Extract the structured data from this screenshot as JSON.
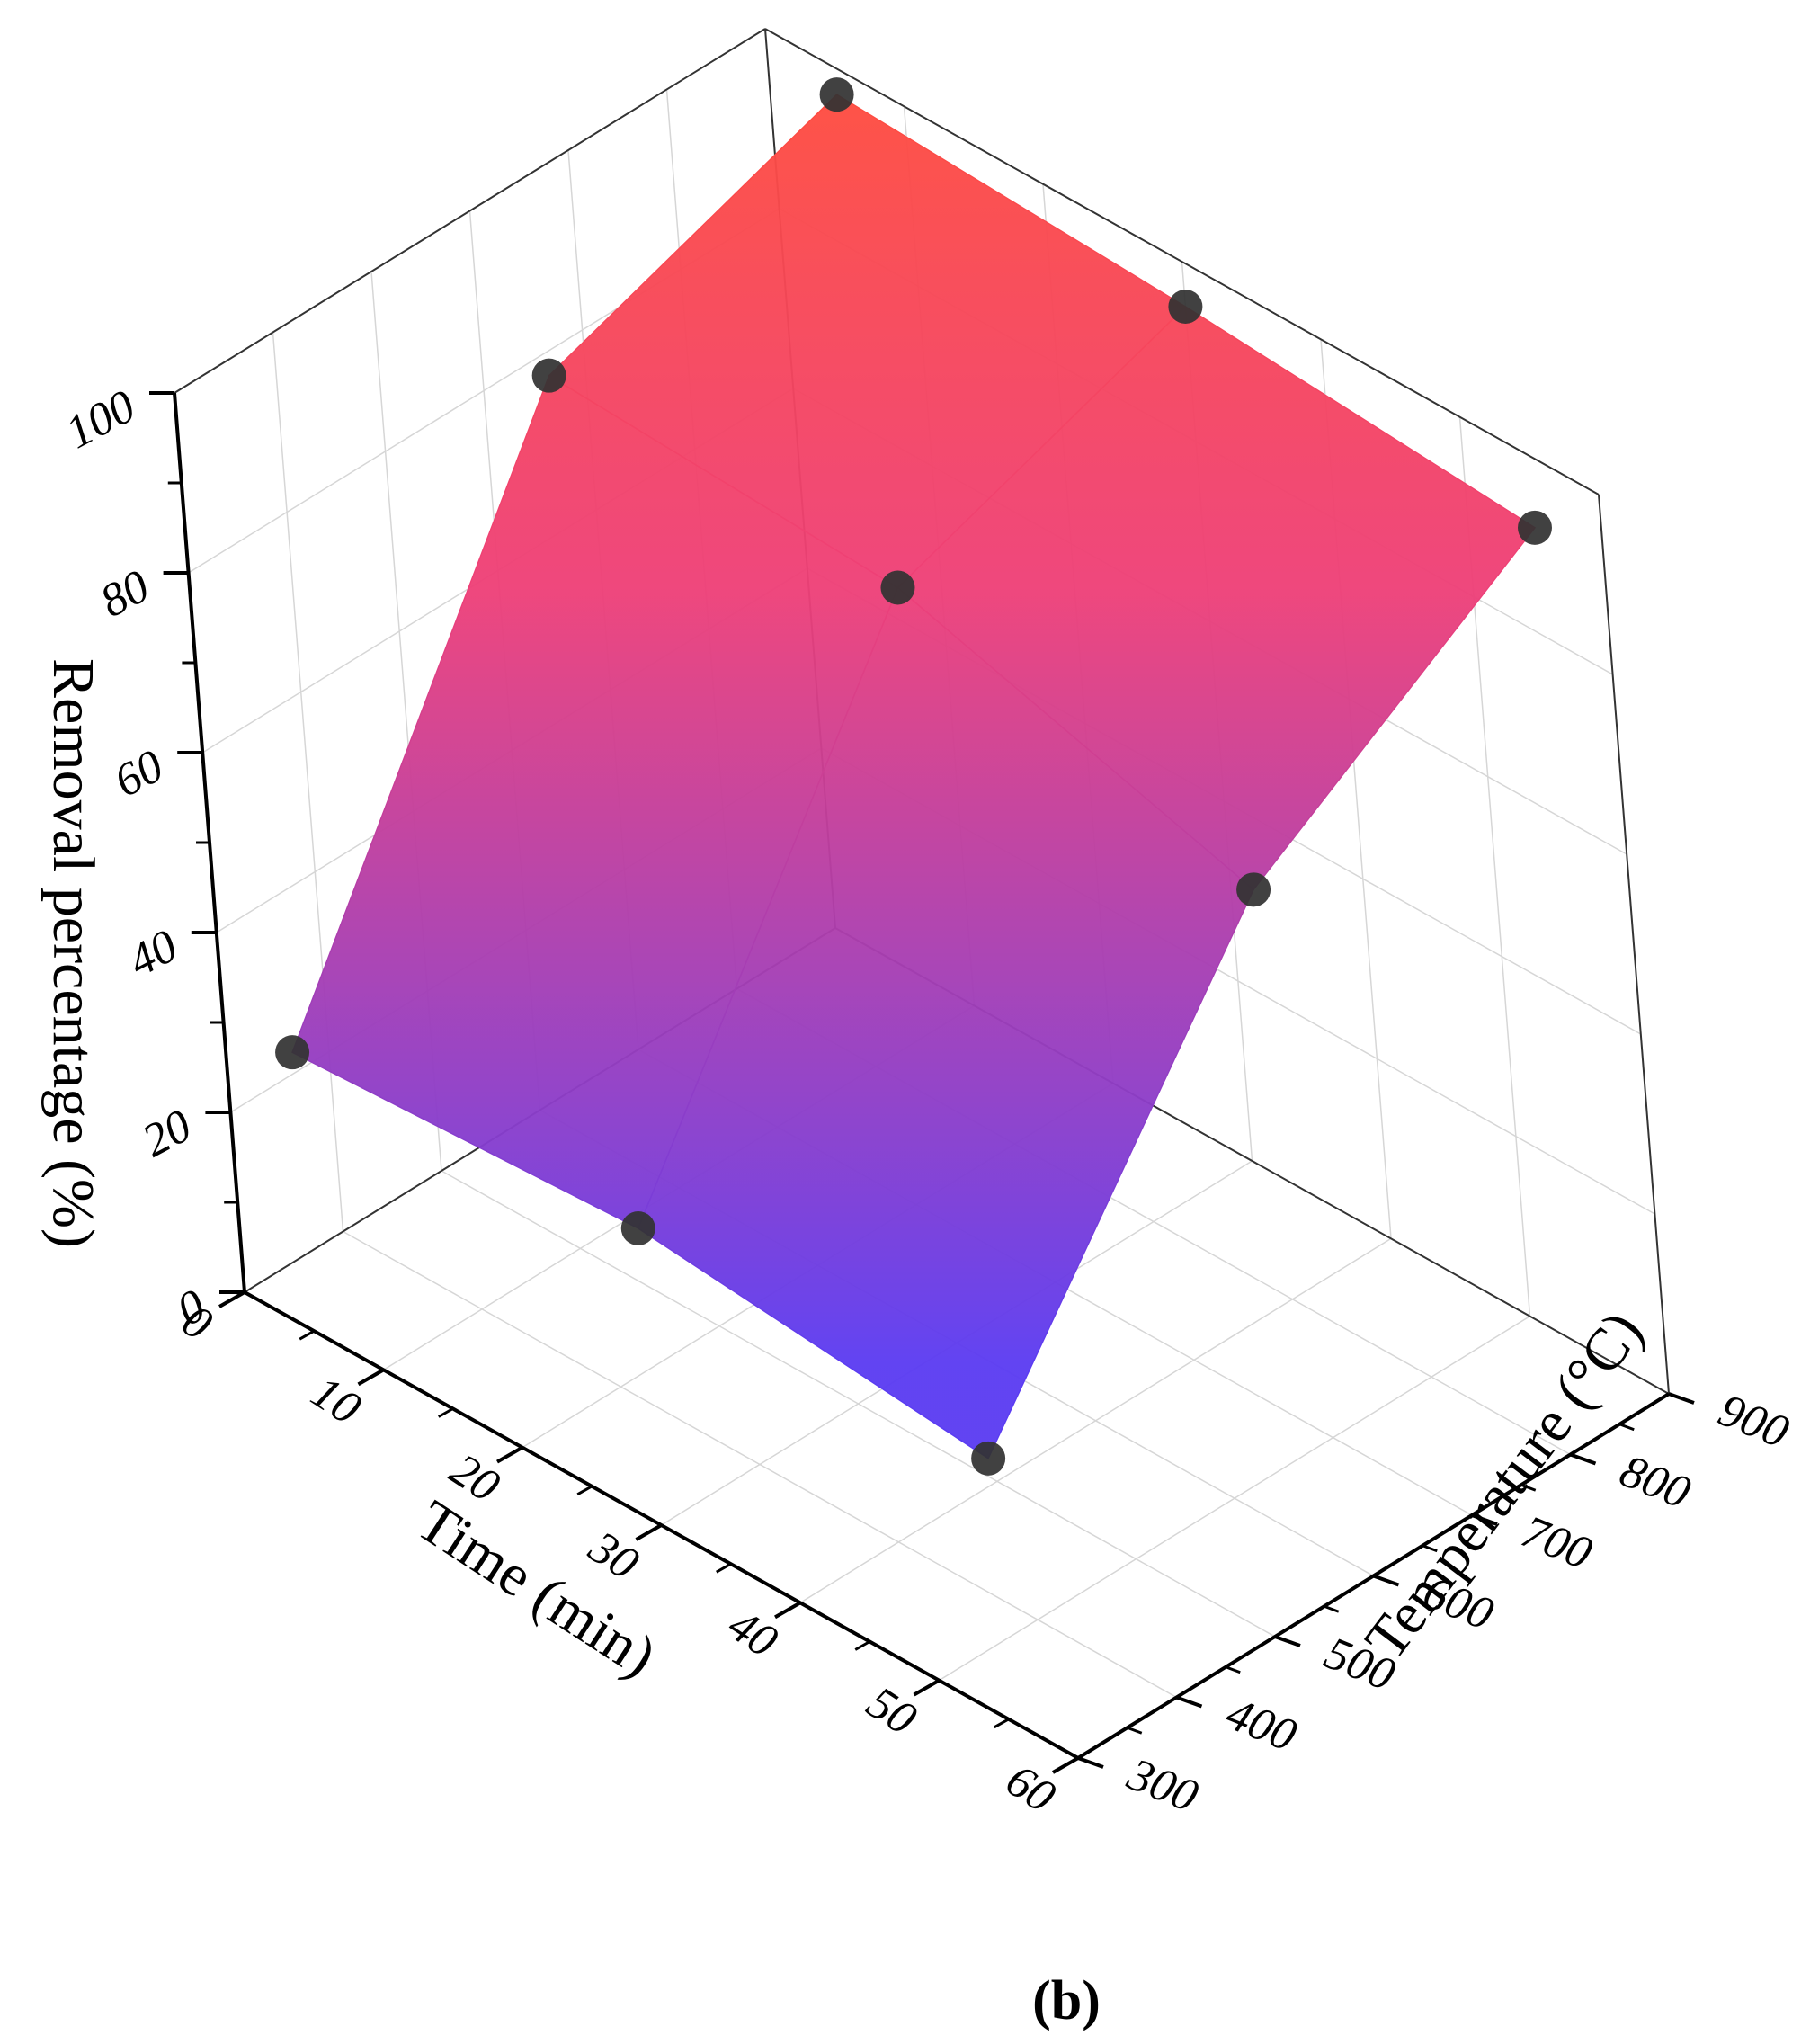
{
  "chart_data": {
    "type": "surface",
    "panel_label": "(b)",
    "xlabel": "Time (min)",
    "ylabel": "Temperature (°C)",
    "zlabel": "Removal percentage (%)",
    "x_ticks": [
      "0",
      "10",
      "20",
      "30",
      "40",
      "50",
      "60"
    ],
    "y_ticks": [
      "300",
      "400",
      "500",
      "600",
      "700",
      "800",
      "900"
    ],
    "z_ticks": [
      "0",
      "20",
      "40",
      "60",
      "80",
      "100"
    ],
    "xlim": [
      0,
      60
    ],
    "ylim": [
      300,
      900
    ],
    "zlim": [
      0,
      100
    ],
    "grid": true,
    "surface": {
      "x": [
        5,
        30,
        55
      ],
      "y": [
        300,
        600,
        900
      ],
      "z": [
        [
          31,
          33,
          29
        ],
        [
          86,
          84,
          72
        ],
        [
          97,
          95,
          92
        ]
      ]
    },
    "points": [
      {
        "x": 5,
        "y": 300,
        "z": 31
      },
      {
        "x": 30,
        "y": 300,
        "z": 33
      },
      {
        "x": 55,
        "y": 300,
        "z": 29
      },
      {
        "x": 5,
        "y": 600,
        "z": 86
      },
      {
        "x": 30,
        "y": 600,
        "z": 84
      },
      {
        "x": 55,
        "y": 600,
        "z": 72
      },
      {
        "x": 5,
        "y": 900,
        "z": 97
      },
      {
        "x": 30,
        "y": 900,
        "z": 95
      },
      {
        "x": 55,
        "y": 900,
        "z": 92
      }
    ],
    "colors": {
      "low": "#5b3cf2",
      "mid": "#ee4078",
      "high": "#ff4d3d",
      "point": "#333333",
      "axis": "#000000",
      "grid": "#d6d6d6",
      "frame": "#333333"
    }
  }
}
